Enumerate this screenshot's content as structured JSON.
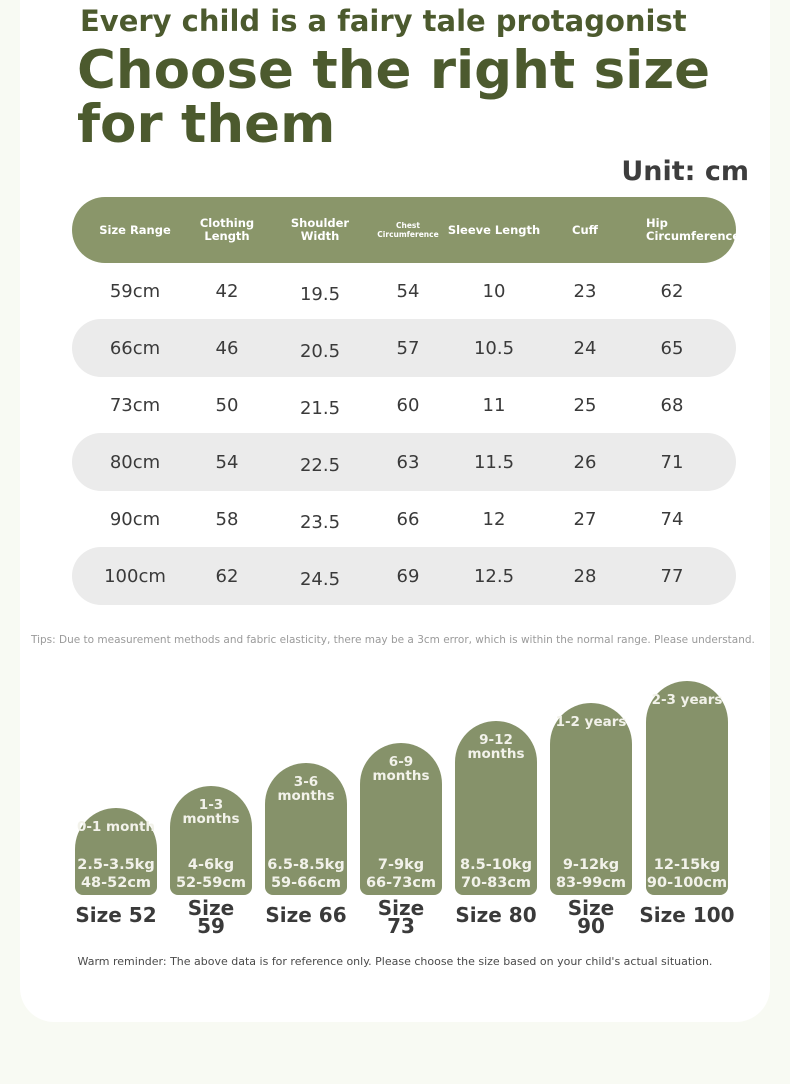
{
  "header": {
    "subtitle": "Every child is a fairy tale protagonist",
    "title": "Choose the right size for them",
    "unit": "Unit: cm"
  },
  "table": {
    "columns": [
      "Size Range",
      "Clothing Length",
      "Shoulder Width",
      "Chest Circumference",
      "Sleeve Length",
      "Cuff",
      "Hip Circumference"
    ],
    "rows": [
      [
        "59cm",
        "42",
        "19.5",
        "54",
        "10",
        "23",
        "62"
      ],
      [
        "66cm",
        "46",
        "20.5",
        "57",
        "10.5",
        "24",
        "65"
      ],
      [
        "73cm",
        "50",
        "21.5",
        "60",
        "11",
        "25",
        "68"
      ],
      [
        "80cm",
        "54",
        "22.5",
        "63",
        "11.5",
        "26",
        "71"
      ],
      [
        "90cm",
        "58",
        "23.5",
        "66",
        "12",
        "27",
        "74"
      ],
      [
        "100cm",
        "62",
        "24.5",
        "69",
        "12.5",
        "28",
        "77"
      ]
    ]
  },
  "tips": "Tips: Due to measurement methods and fabric elasticity, there may be a 3cm error, which is within the normal range. Please understand.",
  "sizes": [
    {
      "age": "0-1 month",
      "weight": "2.5-3.5kg",
      "height": "48-52cm",
      "label": "Size 52"
    },
    {
      "age": "1-3 months",
      "weight": "4-6kg",
      "height": "52-59cm",
      "label": "Size 59"
    },
    {
      "age": "3-6 months",
      "weight": "6.5-8.5kg",
      "height": "59-66cm",
      "label": "Size 66"
    },
    {
      "age": "6-9 months",
      "weight": "7-9kg",
      "height": "66-73cm",
      "label": "Size 73"
    },
    {
      "age": "9-12 months",
      "weight": "8.5-10kg",
      "height": "70-83cm",
      "label": "Size 80"
    },
    {
      "age": "1-2 years",
      "weight": "9-12kg",
      "height": "83-99cm",
      "label": "Size 90"
    },
    {
      "age": "2-3 years",
      "weight": "12-15kg",
      "height": "90-100cm",
      "label": "Size 100"
    }
  ],
  "reminder": "Warm reminder: The above data is for reference only. Please choose the size based on your child's actual situation.",
  "colors": {
    "accent": "#8a966a",
    "title": "#4c5a2e",
    "row_shade": "#ebebeb"
  }
}
